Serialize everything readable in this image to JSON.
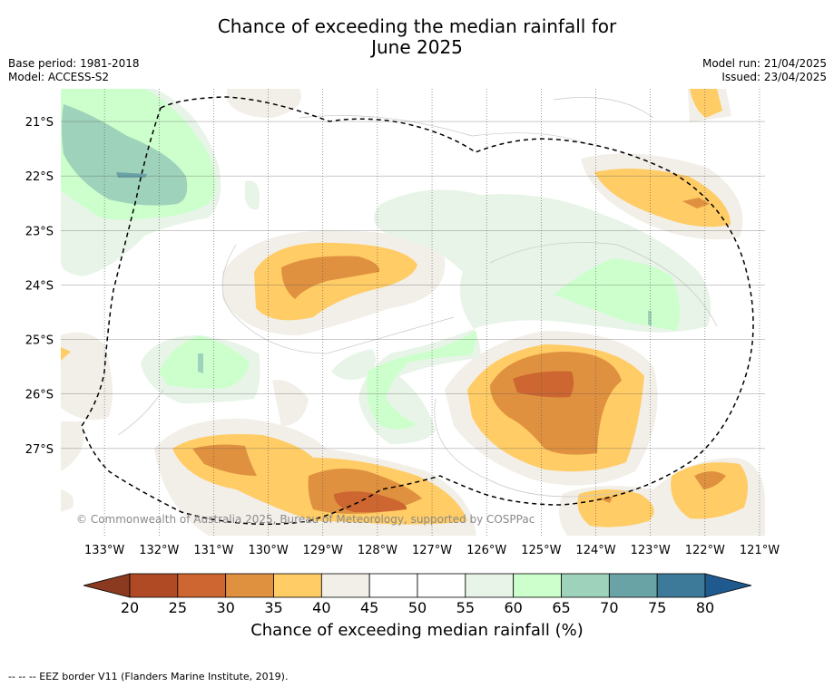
{
  "title_line1": "Chance of exceeding the median rainfall for",
  "title_line2": "June 2025",
  "base_period": "Base period: 1981-2018",
  "model": "Model: ACCESS-S2",
  "model_run": "Model run: 21/04/2025",
  "issued": "Issued: 23/04/2025",
  "copyright": "© Commonwealth of Australia 2025, Bureau of Meteorology, supported by COSPPac",
  "footnote": "--  --  -- EEZ border V11 (Flanders Marine Institute, 2019).",
  "colorbar": {
    "title": "Chance of exceeding median rainfall (%)",
    "ticks": [
      "20",
      "25",
      "30",
      "35",
      "40",
      "45",
      "50",
      "55",
      "60",
      "65",
      "70",
      "75",
      "80"
    ],
    "under_color": "#8c3a1f",
    "over_color": "#1f5a8f",
    "colors": [
      "#b04a25",
      "#cd6630",
      "#e0913f",
      "#ffcc66",
      "#f2efe9",
      "#ffffff",
      "#ffffff",
      "#e8f4e8",
      "#ccffcc",
      "#9ed2bb",
      "#6aa3a6",
      "#3d7a9a"
    ]
  },
  "map": {
    "lat_labels": [
      "21°S",
      "22°S",
      "23°S",
      "24°S",
      "25°S",
      "26°S",
      "27°S"
    ],
    "lon_labels": [
      "133°W",
      "132°W",
      "131°W",
      "130°W",
      "129°W",
      "128°W",
      "127°W",
      "126°W",
      "125°W",
      "124°W",
      "123°W",
      "122°W",
      "121°W"
    ],
    "lon_range": [
      -133.8,
      -120.9
    ],
    "lat_range": [
      -28.6,
      -20.4
    ]
  }
}
